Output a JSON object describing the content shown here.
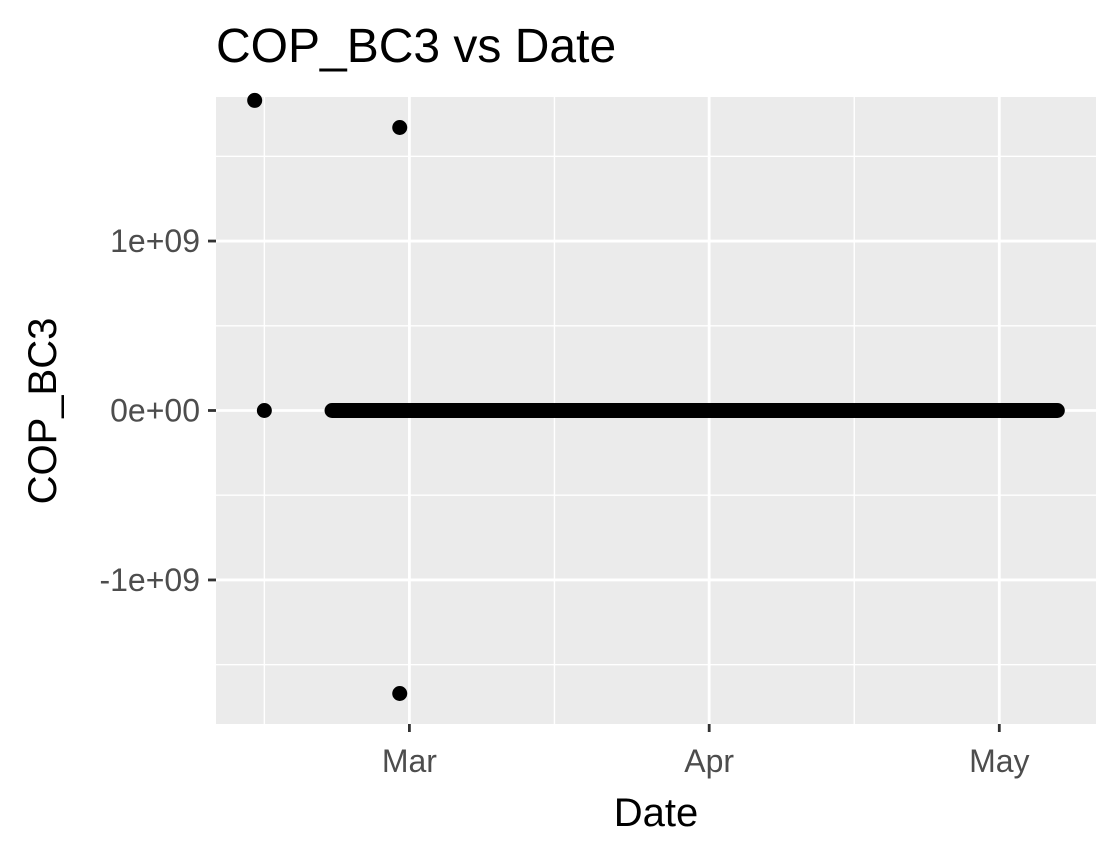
{
  "chart_data": {
    "type": "scatter",
    "title": "COP_BC3 vs Date",
    "xlabel": "Date",
    "ylabel": "COP_BC3",
    "x_axis": {
      "type": "date",
      "range": [
        "2024-02-10",
        "2024-05-11"
      ],
      "ticks": [
        {
          "value": "2024-03-01",
          "label": "Mar"
        },
        {
          "value": "2024-04-01",
          "label": "Apr"
        },
        {
          "value": "2024-05-01",
          "label": "May"
        }
      ],
      "minor_ticks": [
        "2024-02-15",
        "2024-03-16",
        "2024-04-16"
      ]
    },
    "y_axis": {
      "range": [
        -1850000000.0,
        1850000000.0
      ],
      "ticks": [
        {
          "value": 1000000000.0,
          "label": "1e+09"
        },
        {
          "value": 0,
          "label": "0e+00"
        },
        {
          "value": -1000000000.0,
          "label": "-1e+09"
        }
      ],
      "minor_ticks": [
        1500000000.0,
        500000000.0,
        -500000000.0,
        -1500000000.0
      ]
    },
    "grid": true,
    "point_color": "#000000",
    "points": [
      {
        "x": "2024-02-14",
        "y": 1830000000.0
      },
      {
        "x": "2024-02-15",
        "y": 0
      },
      {
        "x": "2024-02-29",
        "y": 1670000000.0
      },
      {
        "x": "2024-02-29",
        "y": -1670000000.0
      }
    ],
    "dense_segment": {
      "x_start": "2024-02-22",
      "x_end": "2024-05-07",
      "y": 0
    }
  }
}
